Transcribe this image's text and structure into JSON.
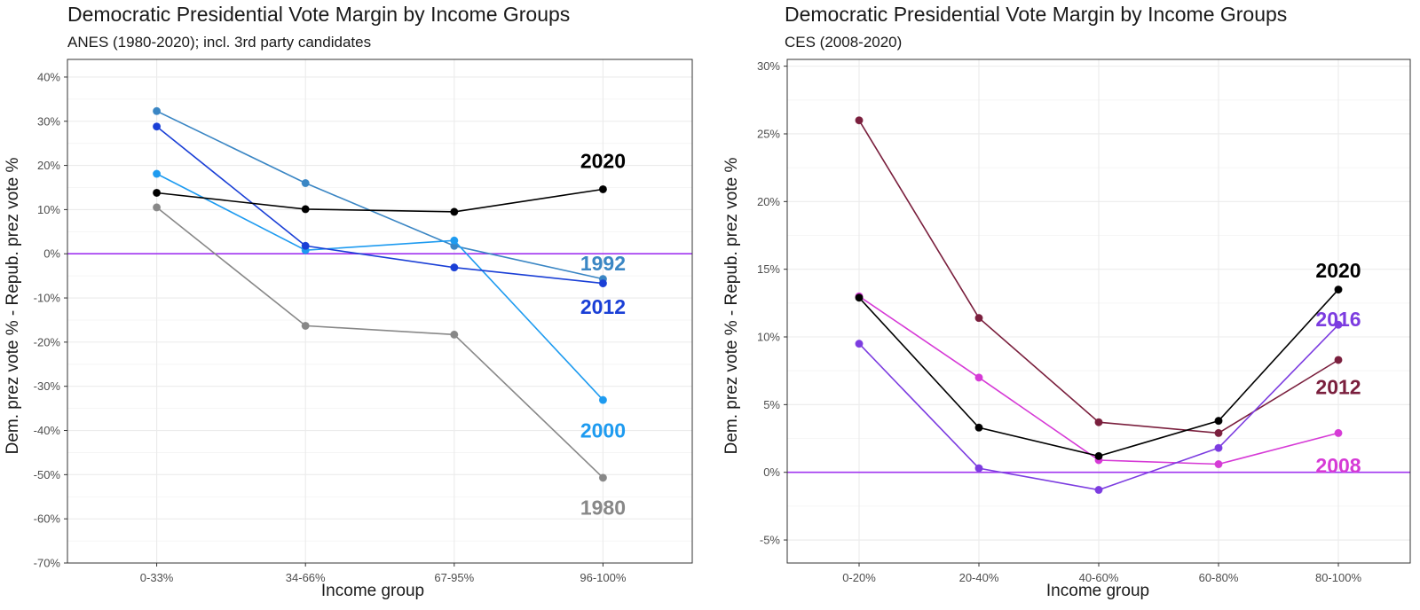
{
  "chart_data": [
    {
      "type": "line",
      "title": "Democratic Presidential Vote Margin by Income Groups",
      "subtitle": "ANES (1980-2020); incl. 3rd party candidates",
      "xlabel": "Income group",
      "ylabel": "Dem. prez vote % - Repub. prez vote %",
      "categories": [
        "0-33%",
        "34-66%",
        "67-95%",
        "96-100%"
      ],
      "ylim": [
        -70,
        44
      ],
      "yticks": [
        -70,
        -60,
        -50,
        -40,
        -30,
        -20,
        -10,
        0,
        10,
        20,
        30,
        40
      ],
      "ytick_labels": [
        "-70%",
        "-60%",
        "-50%",
        "-40%",
        "-30%",
        "-20%",
        "-10%",
        "0%",
        "10%",
        "20%",
        "30%",
        "40%"
      ],
      "grid": true,
      "reference_line": {
        "y": 0,
        "color": "#a034f0"
      },
      "series": [
        {
          "name": "1980",
          "color": "#888888",
          "values": [
            10.5,
            -16.3,
            -18.3,
            -50.7
          ],
          "label_value": -57.5
        },
        {
          "name": "1992",
          "color": "#3a86c4",
          "values": [
            32.3,
            16.0,
            1.8,
            -5.7
          ],
          "label_value": -2.2
        },
        {
          "name": "2000",
          "color": "#1e9bf0",
          "values": [
            18.1,
            0.8,
            3.0,
            -33.1
          ],
          "label_value": -40.0
        },
        {
          "name": "2012",
          "color": "#1a3fd6",
          "values": [
            28.8,
            1.8,
            -3.1,
            -6.7
          ],
          "label_value": -12.0
        },
        {
          "name": "2020",
          "color": "#000000",
          "values": [
            13.8,
            10.1,
            9.5,
            14.6
          ],
          "label_value": 21.0
        }
      ]
    },
    {
      "type": "line",
      "title": "Democratic Presidential Vote Margin by Income Groups",
      "subtitle": "CES (2008-2020)",
      "xlabel": "Income group",
      "ylabel": "Dem. prez vote % - Repub. prez vote %",
      "categories": [
        "0-20%",
        "20-40%",
        "40-60%",
        "60-80%",
        "80-100%"
      ],
      "ylim": [
        -6.7,
        30.5
      ],
      "yticks": [
        -5,
        0,
        5,
        10,
        15,
        20,
        25,
        30
      ],
      "ytick_labels": [
        "-5%",
        "0%",
        "5%",
        "10%",
        "15%",
        "20%",
        "25%",
        "30%"
      ],
      "grid": true,
      "reference_line": {
        "y": 0,
        "color": "#a034f0"
      },
      "series": [
        {
          "name": "2008",
          "color": "#d63ad6",
          "values": [
            13.0,
            7.0,
            0.9,
            0.6,
            2.9
          ],
          "label_value": 0.5
        },
        {
          "name": "2012",
          "color": "#7a1f3d",
          "values": [
            26.0,
            11.4,
            3.7,
            2.9,
            8.3
          ],
          "label_value": 6.3
        },
        {
          "name": "2016",
          "color": "#7c3ce0",
          "values": [
            9.5,
            0.3,
            -1.3,
            1.8,
            10.9
          ],
          "label_value": 11.3
        },
        {
          "name": "2020",
          "color": "#000000",
          "values": [
            12.9,
            3.3,
            1.2,
            3.8,
            13.5
          ],
          "label_value": 14.9
        }
      ]
    }
  ]
}
